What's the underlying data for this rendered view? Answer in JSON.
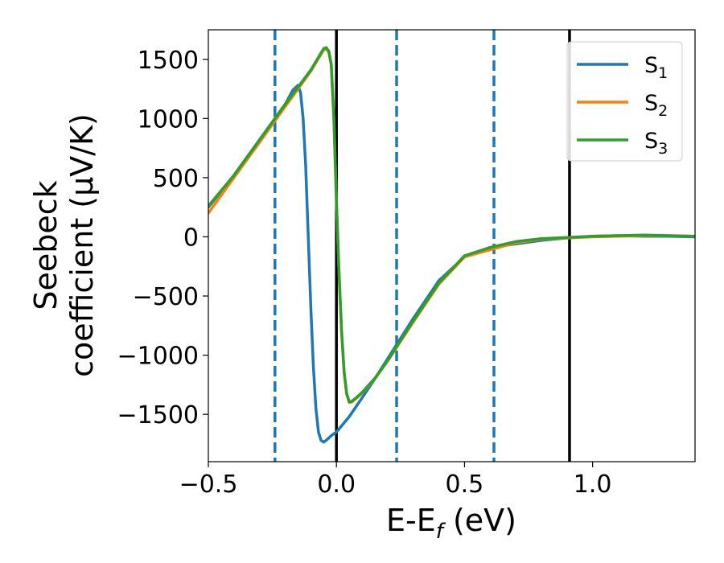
{
  "chart_data": {
    "type": "line",
    "xlabel": "E-E",
    "xlabel_sub": "f",
    "xlabel_unit": " (eV)",
    "ylabel_line1": "Seebeck",
    "ylabel_line2": "coefficient  (μV/K)",
    "xlim": [
      -0.5,
      1.4
    ],
    "ylim": [
      -1900,
      1750
    ],
    "xticks": [
      -0.5,
      0.0,
      0.5,
      1.0
    ],
    "xtick_labels": [
      "−0.5",
      "0.0",
      "0.5",
      "1.0"
    ],
    "yticks": [
      -1500,
      -1000,
      -500,
      0,
      500,
      1000,
      1500
    ],
    "ytick_labels": [
      "−1500",
      "−1000",
      "−500",
      "0",
      "500",
      "1000",
      "1500"
    ],
    "grid": false,
    "legend_position": "top-right",
    "vlines": [
      {
        "x": -0.24,
        "style": "dashed",
        "color": "#1f77b4"
      },
      {
        "x": 0.0,
        "style": "solid",
        "color": "#000000"
      },
      {
        "x": 0.235,
        "style": "dashed",
        "color": "#1f77b4"
      },
      {
        "x": 0.615,
        "style": "dashed",
        "color": "#1f77b4"
      },
      {
        "x": 0.91,
        "style": "solid",
        "color": "#000000"
      }
    ],
    "series": [
      {
        "name": "S",
        "sub": "1",
        "color": "#1f77b4",
        "x": [
          -0.5,
          -0.4,
          -0.3,
          -0.2,
          -0.17,
          -0.15,
          -0.14,
          -0.13,
          -0.12,
          -0.11,
          -0.1,
          -0.09,
          -0.08,
          -0.07,
          -0.06,
          -0.05,
          -0.04,
          -0.03,
          -0.02,
          0.0,
          0.05,
          0.1,
          0.15,
          0.2,
          0.3,
          0.4,
          0.5,
          0.6,
          0.7,
          0.8,
          0.9,
          1.0,
          1.1,
          1.2,
          1.3,
          1.4
        ],
        "y": [
          250,
          520,
          820,
          1120,
          1240,
          1280,
          1220,
          1000,
          600,
          0,
          -600,
          -1100,
          -1450,
          -1650,
          -1720,
          -1735,
          -1720,
          -1700,
          -1680,
          -1650,
          -1520,
          -1360,
          -1200,
          -1030,
          -690,
          -370,
          -170,
          -90,
          -60,
          -30,
          -10,
          5,
          10,
          5,
          5,
          0
        ]
      },
      {
        "name": "S",
        "sub": "2",
        "color": "#ff7f0e",
        "x": [
          -0.5,
          -0.4,
          -0.3,
          -0.2,
          -0.1,
          -0.05,
          -0.04,
          -0.03,
          -0.02,
          -0.01,
          0.0,
          0.01,
          0.02,
          0.03,
          0.04,
          0.05,
          0.06,
          0.08,
          0.1,
          0.15,
          0.2,
          0.3,
          0.4,
          0.5,
          0.6,
          0.7,
          0.8,
          0.9,
          1.0,
          1.1,
          1.2,
          1.3,
          1.4
        ],
        "y": [
          200,
          500,
          800,
          1100,
          1400,
          1580,
          1590,
          1560,
          1450,
          1000,
          300,
          -300,
          -800,
          -1150,
          -1330,
          -1400,
          -1395,
          -1360,
          -1320,
          -1200,
          -1050,
          -720,
          -400,
          -170,
          -110,
          -50,
          -20,
          -10,
          0,
          5,
          10,
          10,
          5
        ]
      },
      {
        "name": "S",
        "sub": "3",
        "color": "#2ca02c",
        "x": [
          -0.5,
          -0.4,
          -0.3,
          -0.2,
          -0.1,
          -0.05,
          -0.04,
          -0.03,
          -0.02,
          -0.01,
          0.0,
          0.01,
          0.02,
          0.03,
          0.04,
          0.05,
          0.06,
          0.08,
          0.1,
          0.15,
          0.2,
          0.3,
          0.4,
          0.5,
          0.6,
          0.7,
          0.8,
          0.9,
          1.0,
          1.1,
          1.2,
          1.3,
          1.4
        ],
        "y": [
          260,
          520,
          820,
          1120,
          1410,
          1590,
          1600,
          1570,
          1460,
          1010,
          310,
          -290,
          -790,
          -1140,
          -1320,
          -1395,
          -1390,
          -1355,
          -1315,
          -1195,
          -1045,
          -710,
          -390,
          -160,
          -90,
          -40,
          -15,
          -5,
          5,
          10,
          15,
          10,
          5
        ]
      }
    ]
  }
}
